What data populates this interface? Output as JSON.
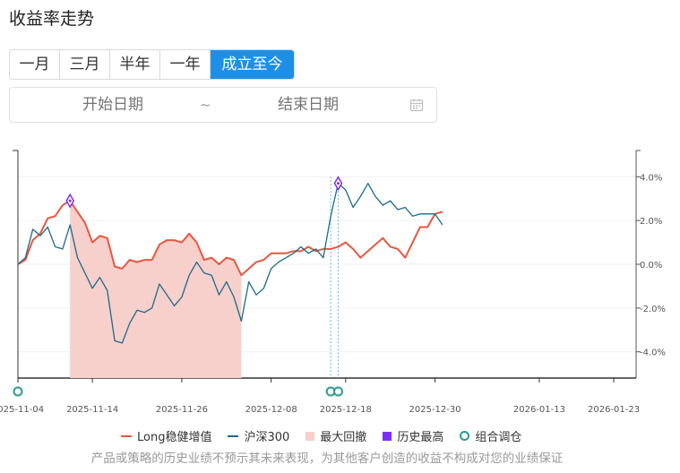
{
  "page": {
    "title": "收益率走势",
    "tabs": [
      "一月",
      "三月",
      "半年",
      "一年",
      "成立至今"
    ],
    "active_tab": "成立至今",
    "date_range": {
      "start_placeholder": "开始日期",
      "separator": "~",
      "end_placeholder": "结束日期"
    },
    "disclaimer": "产品或策略的历史业绩不预示其未来表现，为其他客户创造的收益不构成对您的业绩保证"
  },
  "colors": {
    "fund": "#e8573f",
    "index": "#1a6b8a",
    "drawdown": "#f7cfcb",
    "peak": "#7b2ff7",
    "rebalance": "#2a9d8f",
    "active_tab": "#1e8fe6"
  },
  "chart_data": {
    "type": "line",
    "x_start": "2025-11-04",
    "x_end": "2026-01-26",
    "x_ticks": [
      "2025-11-04",
      "2025-11-14",
      "2025-11-26",
      "2025-12-08",
      "2025-12-18",
      "2025-12-30",
      "2026-01-13",
      "2026-01-23"
    ],
    "y_ticks": [
      "-4.0%",
      "-2.0%",
      "0.0%",
      "2.0%",
      "4.0%"
    ],
    "ylim": [
      -5.2,
      5.2
    ],
    "y_unit": "%",
    "series": [
      {
        "name": "Long稳健增值",
        "values": [
          [
            "2025-11-04",
            0.0
          ],
          [
            "2025-11-05",
            0.2
          ],
          [
            "2025-11-06",
            1.1
          ],
          [
            "2025-11-07",
            1.4
          ],
          [
            "2025-11-08",
            2.1
          ],
          [
            "2025-11-09",
            2.2
          ],
          [
            "2025-11-10",
            2.7
          ],
          [
            "2025-11-11",
            2.9
          ],
          [
            "2025-11-12",
            2.4
          ],
          [
            "2025-11-13",
            1.9
          ],
          [
            "2025-11-14",
            1.0
          ],
          [
            "2025-11-15",
            1.3
          ],
          [
            "2025-11-16",
            1.2
          ],
          [
            "2025-11-17",
            -0.1
          ],
          [
            "2025-11-18",
            -0.2
          ],
          [
            "2025-11-19",
            0.2
          ],
          [
            "2025-11-20",
            0.1
          ],
          [
            "2025-11-21",
            0.2
          ],
          [
            "2025-11-22",
            0.2
          ],
          [
            "2025-11-23",
            0.9
          ],
          [
            "2025-11-24",
            1.1
          ],
          [
            "2025-11-25",
            1.1
          ],
          [
            "2025-11-26",
            1.0
          ],
          [
            "2025-11-27",
            1.4
          ],
          [
            "2025-11-28",
            1.0
          ],
          [
            "2025-11-29",
            0.2
          ],
          [
            "2025-11-30",
            0.3
          ],
          [
            "2025-12-01",
            0.0
          ],
          [
            "2025-12-02",
            0.3
          ],
          [
            "2025-12-03",
            0.2
          ],
          [
            "2025-12-04",
            -0.5
          ],
          [
            "2025-12-05",
            -0.2
          ],
          [
            "2025-12-06",
            0.1
          ],
          [
            "2025-12-07",
            0.2
          ],
          [
            "2025-12-08",
            0.5
          ],
          [
            "2025-12-09",
            0.5
          ],
          [
            "2025-12-10",
            0.5
          ],
          [
            "2025-12-11",
            0.6
          ],
          [
            "2025-12-12",
            0.6
          ],
          [
            "2025-12-13",
            0.8
          ],
          [
            "2025-12-14",
            0.6
          ],
          [
            "2025-12-15",
            0.7
          ],
          [
            "2025-12-16",
            0.7
          ],
          [
            "2025-12-17",
            0.8
          ],
          [
            "2025-12-18",
            1.0
          ],
          [
            "2025-12-19",
            0.7
          ],
          [
            "2025-12-20",
            0.3
          ],
          [
            "2025-12-21",
            0.6
          ],
          [
            "2025-12-22",
            0.9
          ],
          [
            "2025-12-23",
            1.2
          ],
          [
            "2025-12-24",
            0.8
          ],
          [
            "2025-12-25",
            0.7
          ],
          [
            "2025-12-26",
            0.3
          ],
          [
            "2025-12-27",
            1.0
          ],
          [
            "2025-12-28",
            1.7
          ],
          [
            "2025-12-29",
            1.7
          ],
          [
            "2025-12-30",
            2.3
          ],
          [
            "2025-12-31",
            2.4
          ]
        ]
      },
      {
        "name": "沪深300",
        "values": [
          [
            "2025-11-04",
            0.0
          ],
          [
            "2025-11-05",
            0.3
          ],
          [
            "2025-11-06",
            1.6
          ],
          [
            "2025-11-07",
            1.3
          ],
          [
            "2025-11-08",
            1.7
          ],
          [
            "2025-11-09",
            0.8
          ],
          [
            "2025-11-10",
            0.7
          ],
          [
            "2025-11-11",
            1.8
          ],
          [
            "2025-11-12",
            0.3
          ],
          [
            "2025-11-13",
            -0.4
          ],
          [
            "2025-11-14",
            -1.1
          ],
          [
            "2025-11-15",
            -0.6
          ],
          [
            "2025-11-16",
            -1.2
          ],
          [
            "2025-11-17",
            -3.5
          ],
          [
            "2025-11-18",
            -3.6
          ],
          [
            "2025-11-19",
            -2.7
          ],
          [
            "2025-11-20",
            -2.1
          ],
          [
            "2025-11-21",
            -2.2
          ],
          [
            "2025-11-22",
            -2.0
          ],
          [
            "2025-11-23",
            -0.9
          ],
          [
            "2025-11-24",
            -1.4
          ],
          [
            "2025-11-25",
            -1.9
          ],
          [
            "2025-11-26",
            -1.5
          ],
          [
            "2025-11-27",
            -0.5
          ],
          [
            "2025-11-28",
            0.1
          ],
          [
            "2025-11-29",
            -0.4
          ],
          [
            "2025-11-30",
            -0.5
          ],
          [
            "2025-12-01",
            -1.4
          ],
          [
            "2025-12-02",
            -0.8
          ],
          [
            "2025-12-03",
            -1.5
          ],
          [
            "2025-12-04",
            -2.6
          ],
          [
            "2025-12-05",
            -0.8
          ],
          [
            "2025-12-06",
            -1.4
          ],
          [
            "2025-12-07",
            -1.1
          ],
          [
            "2025-12-08",
            -0.2
          ],
          [
            "2025-12-09",
            0.1
          ],
          [
            "2025-12-10",
            0.3
          ],
          [
            "2025-12-11",
            0.5
          ],
          [
            "2025-12-12",
            0.8
          ],
          [
            "2025-12-13",
            0.5
          ],
          [
            "2025-12-14",
            0.7
          ],
          [
            "2025-12-15",
            0.3
          ],
          [
            "2025-12-16",
            2.2
          ],
          [
            "2025-12-17",
            3.7
          ],
          [
            "2025-12-18",
            3.4
          ],
          [
            "2025-12-19",
            2.6
          ],
          [
            "2025-12-20",
            3.1
          ],
          [
            "2025-12-21",
            3.7
          ],
          [
            "2025-12-22",
            3.1
          ],
          [
            "2025-12-23",
            2.7
          ],
          [
            "2025-12-24",
            2.9
          ],
          [
            "2025-12-25",
            2.5
          ],
          [
            "2025-12-26",
            2.6
          ],
          [
            "2025-12-27",
            2.2
          ],
          [
            "2025-12-28",
            2.3
          ],
          [
            "2025-12-29",
            2.3
          ],
          [
            "2025-12-30",
            2.3
          ],
          [
            "2025-12-31",
            1.8
          ]
        ]
      }
    ],
    "max_drawdown": {
      "start": "2025-11-11",
      "end": "2025-12-04"
    },
    "historical_highs": [
      {
        "date": "2025-11-11",
        "value": 2.9
      },
      {
        "date": "2025-12-17",
        "value": 3.7
      }
    ],
    "rebalance_dates": [
      "2025-11-04",
      "2025-12-16",
      "2025-12-17"
    ],
    "legend": [
      {
        "label": "Long稳健增值",
        "kind": "line",
        "color": "#e8573f"
      },
      {
        "label": "沪深300",
        "kind": "line",
        "color": "#1a6b8a"
      },
      {
        "label": "最大回撤",
        "kind": "box",
        "color": "#f7cfcb"
      },
      {
        "label": "历史最高",
        "kind": "box",
        "color": "#7b2ff7"
      },
      {
        "label": "组合调仓",
        "kind": "ring",
        "color": "#2a9d8f"
      }
    ]
  }
}
